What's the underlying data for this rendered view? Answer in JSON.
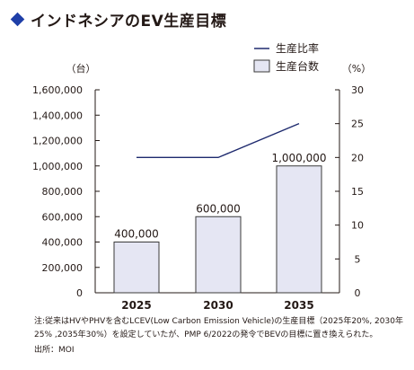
{
  "title": "インドネシアのEV生産目標",
  "colors": {
    "accent": "#1f3fa8",
    "bar_fill": "#e5e6f3",
    "bar_stroke": "#3a3a3a",
    "line": "#1e2a6e"
  },
  "chart_data": {
    "type": "bar",
    "categories": [
      "2025",
      "2030",
      "2035"
    ],
    "series": [
      {
        "name": "生産台数",
        "type": "bar",
        "axis": "left",
        "values": [
          400000,
          600000,
          1000000
        ],
        "labels": [
          "400,000",
          "600,000",
          "1,000,000"
        ]
      },
      {
        "name": "生産比率",
        "type": "line",
        "axis": "right",
        "values": [
          20,
          20,
          25
        ]
      }
    ],
    "y_left": {
      "unit_label": "（台）",
      "range": [
        0,
        1600000
      ],
      "ticks": [
        0,
        200000,
        400000,
        600000,
        800000,
        1000000,
        1200000,
        1400000,
        1600000
      ],
      "tick_labels": [
        "0",
        "200,000",
        "400,000",
        "600,000",
        "800,000",
        "1,000,000",
        "1,200,000",
        "1,400,000",
        "1,600,000"
      ]
    },
    "y_right": {
      "unit_label": "（%）",
      "range": [
        0,
        30
      ],
      "ticks": [
        0,
        5,
        10,
        15,
        20,
        25,
        30
      ],
      "tick_labels": [
        "0",
        "5",
        "10",
        "15",
        "20",
        "25",
        "30"
      ]
    },
    "legend": {
      "placement": "top-right",
      "line_label": "生産比率",
      "bar_label": "生産台数"
    },
    "grid": false
  },
  "notes": [
    "注:従来はHVやPHVを含むLCEV(Low Carbon Emission Vehicle)の生産目標（2025年20%, 2030年",
    "25% ,2035年30%）を設定していたが、PMP 6/2022の発令でBEVの目標に置き換えられた。",
    "出所：MOI"
  ]
}
